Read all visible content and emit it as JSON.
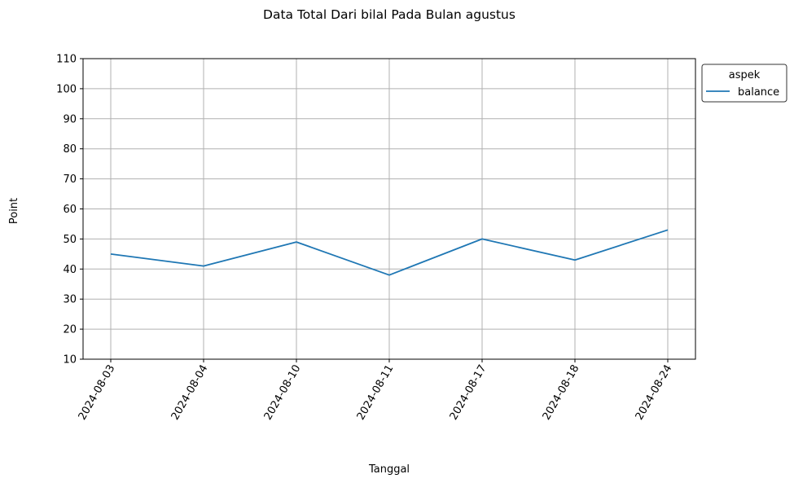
{
  "chart_data": {
    "type": "line",
    "title": "Data Total Dari bilal Pada Bulan agustus",
    "xlabel": "Tanggal",
    "ylabel": "Point",
    "categories": [
      "2024-08-03",
      "2024-08-04",
      "2024-08-10",
      "2024-08-11",
      "2024-08-17",
      "2024-08-18",
      "2024-08-24"
    ],
    "series": [
      {
        "name": "balance",
        "values": [
          45,
          41,
          49,
          38,
          50,
          43,
          53
        ],
        "color": "#1f77b4"
      }
    ],
    "ylim": [
      10,
      110
    ],
    "yticks": [
      10,
      20,
      30,
      40,
      50,
      60,
      70,
      80,
      90,
      100,
      110
    ],
    "grid": true,
    "legend": {
      "title": "aspek",
      "placement": "outside-top-right"
    }
  }
}
